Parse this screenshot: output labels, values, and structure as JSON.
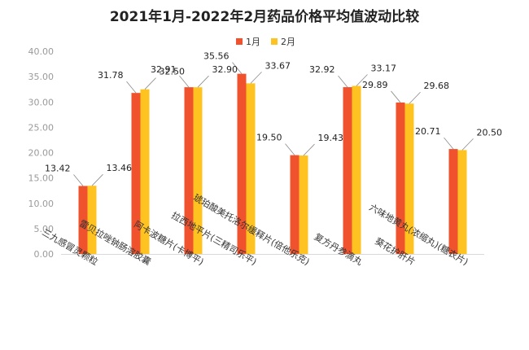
{
  "chart_data": {
    "type": "bar",
    "title": "2021年1月-2022年2月药品价格平均值波动比较",
    "xlabel": "",
    "ylabel": "",
    "ylim": [
      0,
      40
    ],
    "yticks": [
      "0.00",
      "5.00",
      "10.00",
      "15.00",
      "20.00",
      "25.00",
      "30.00",
      "35.00",
      "40.00"
    ],
    "grid": false,
    "legend_position": "top-center",
    "categories": [
      "三九感冒灵颗粒",
      "雷贝拉唑钠肠溶胶囊",
      "阿卡波糖片(卡博平)",
      "拉西地平片(三精司乐平)",
      "琥珀酸美托洛尔缓释片(倍他乐克)",
      "复方丹参滴丸",
      "葵花护肝片",
      "六味地黄丸(浓缩丸)(糖衣片)"
    ],
    "series": [
      {
        "name": "1月",
        "color": "#F0522E",
        "values": [
          13.42,
          31.78,
          32.91,
          35.56,
          19.5,
          32.92,
          29.89,
          20.71
        ]
      },
      {
        "name": "2月",
        "color": "#FFC321",
        "values": [
          13.46,
          32.5,
          32.9,
          33.67,
          19.43,
          33.17,
          29.68,
          20.5
        ]
      }
    ],
    "value_labels": {
      "s1": [
        "13.42",
        "31.78",
        "32.91",
        "35.56",
        "19.50",
        "32.92",
        "29.89",
        "20.71"
      ],
      "s2": [
        "13.46",
        "32.50",
        "32.90",
        "33.67",
        "19.43",
        "33.17",
        "29.68",
        "20.50"
      ]
    }
  }
}
